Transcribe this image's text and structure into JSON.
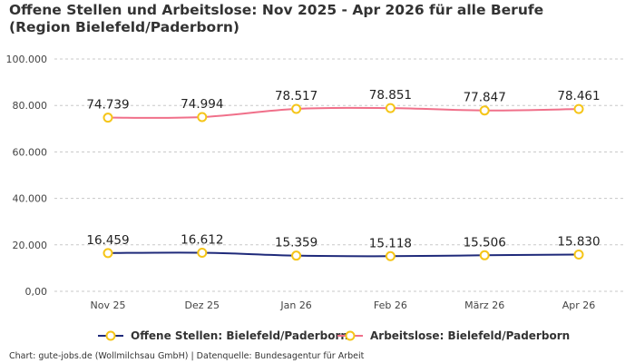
{
  "title": "Offene Stellen und Arbeitslose: Nov 2025 - Apr 2026 für alle Berufe (Region Bielefeld/Paderborn)",
  "footer": "Chart: gute-jobs.de (Wollmilchsau GmbH) | Datenquelle: Bundesagentur für Arbeit",
  "chart_data": {
    "type": "line",
    "title": "Offene Stellen und Arbeitslose: Nov 2025 - Apr 2026 für alle Berufe (Region Bielefeld/Paderborn)",
    "categories": [
      "Nov 25",
      "Dez 25",
      "Jan 26",
      "Feb 26",
      "März 26",
      "Apr 26"
    ],
    "y_ticks": [
      "0,00",
      "20.000",
      "40.000",
      "60.000",
      "80.000",
      "100.000"
    ],
    "y_tick_values": [
      0,
      20000,
      40000,
      60000,
      80000,
      100000
    ],
    "ylim": [
      0,
      100000
    ],
    "grid": true,
    "legend_position": "bottom",
    "series": [
      {
        "name": "Offene Stellen: Bielefeld/Paderborn",
        "color": "#1f2a7a",
        "marker_color": "#f5c518",
        "values": [
          16459,
          16612,
          15359,
          15118,
          15506,
          15830
        ],
        "labels": [
          "16.459",
          "16.612",
          "15.359",
          "15.118",
          "15.506",
          "15.830"
        ]
      },
      {
        "name": "Arbeitslose: Bielefeld/Paderborn",
        "color": "#f0708a",
        "marker_color": "#f5c518",
        "values": [
          74739,
          74994,
          78517,
          78851,
          77847,
          78461
        ],
        "labels": [
          "74.739",
          "74.994",
          "78.517",
          "78.851",
          "77.847",
          "78.461"
        ]
      }
    ]
  }
}
